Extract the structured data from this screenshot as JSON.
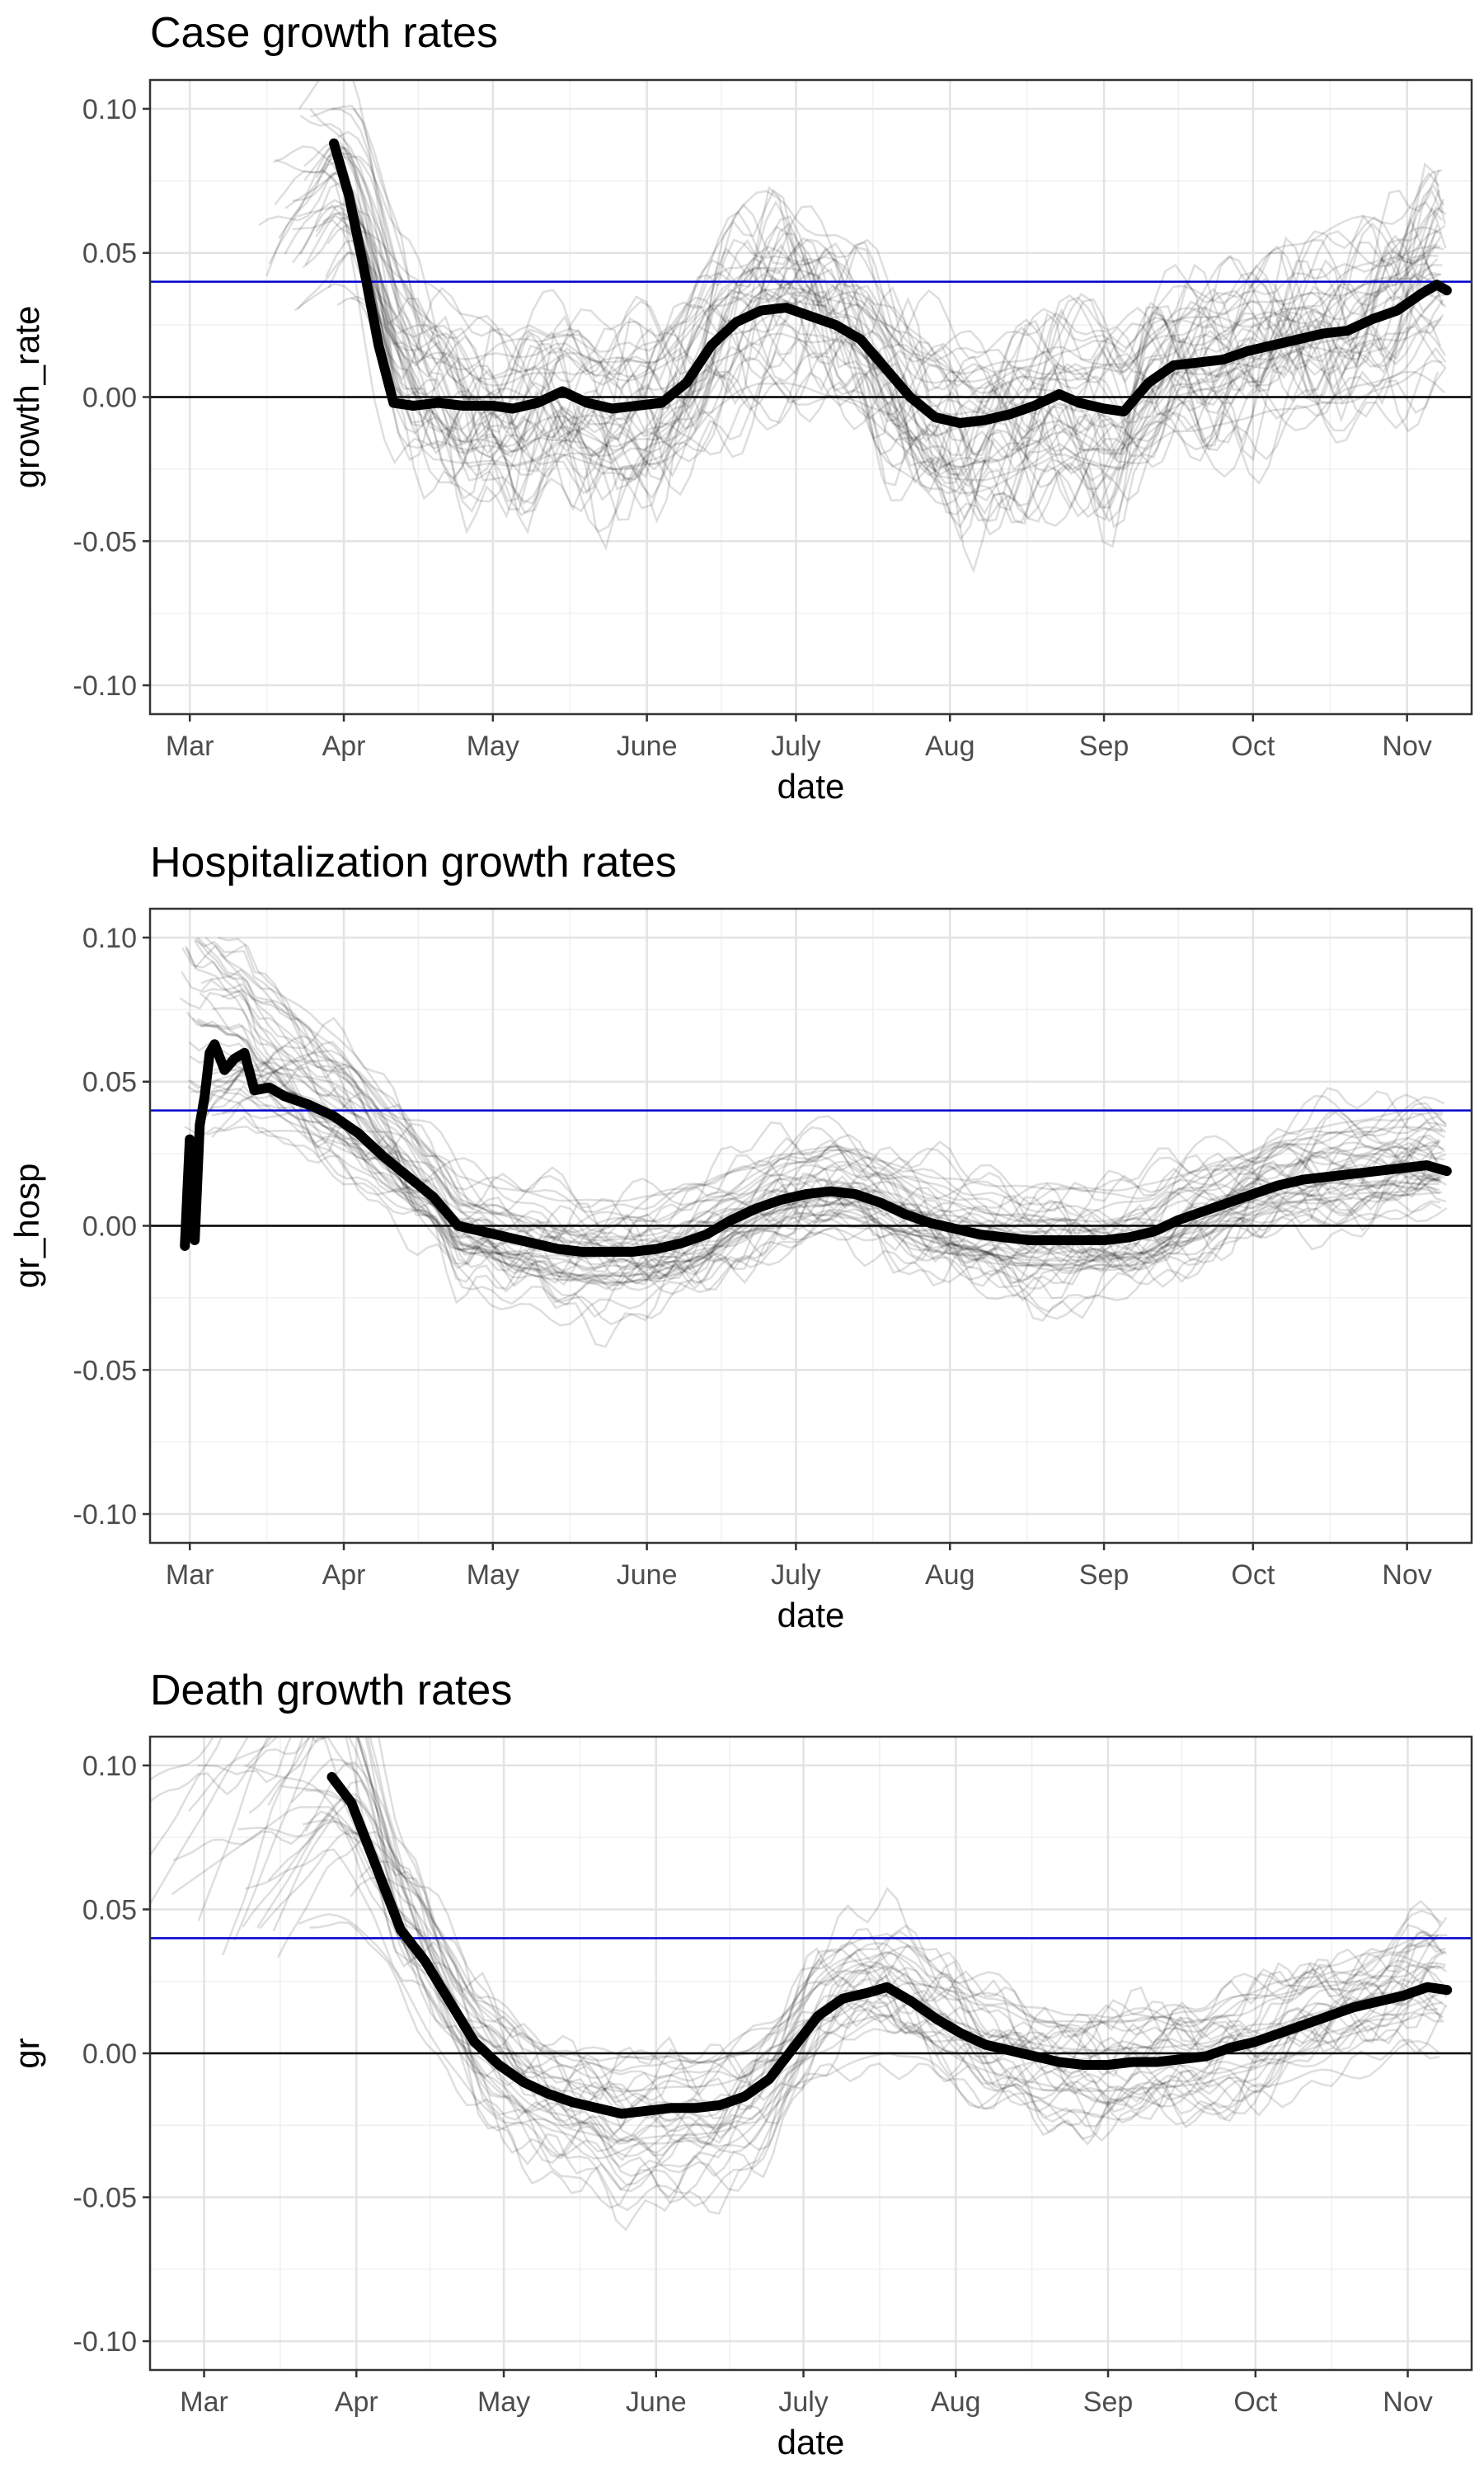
{
  "chart_data": [
    {
      "type": "line",
      "title": "Case growth rates",
      "xlabel": "date",
      "ylabel": "growth_rate",
      "x_range": [
        "2020-02-22",
        "2020-11-14"
      ],
      "ylim": [
        -0.11,
        0.11
      ],
      "yticks": [
        0.1,
        0.05,
        0.0,
        -0.05,
        -0.1
      ],
      "ytick_labels": [
        "0.10",
        "0.05",
        "0.00",
        "-0.05",
        "-0.10"
      ],
      "xticks": [
        "2020-03-01",
        "2020-04-01",
        "2020-05-01",
        "2020-06-01",
        "2020-07-01",
        "2020-08-01",
        "2020-09-01",
        "2020-10-01",
        "2020-11-01"
      ],
      "xtick_labels": [
        "Mar",
        "Apr",
        "May",
        "June",
        "July",
        "Aug",
        "Sep",
        "Oct",
        "Nov"
      ],
      "grid": true,
      "hlines": [
        {
          "y": 0.04,
          "color": "#0000cc"
        },
        {
          "y": 0.0,
          "color": "#000000"
        }
      ],
      "series": [
        {
          "color": "#000000",
          "points": [
            [
              "2020-03-30",
              0.088
            ],
            [
              "2020-04-02",
              0.07
            ],
            [
              "2020-04-05",
              0.045
            ],
            [
              "2020-04-08",
              0.018
            ],
            [
              "2020-04-11",
              -0.002
            ],
            [
              "2020-04-15",
              -0.003
            ],
            [
              "2020-04-20",
              -0.002
            ],
            [
              "2020-04-25",
              -0.003
            ],
            [
              "2020-05-01",
              -0.003
            ],
            [
              "2020-05-05",
              -0.004
            ],
            [
              "2020-05-10",
              -0.002
            ],
            [
              "2020-05-15",
              0.002
            ],
            [
              "2020-05-20",
              -0.002
            ],
            [
              "2020-05-25",
              -0.004
            ],
            [
              "2020-05-30",
              -0.003
            ],
            [
              "2020-06-04",
              -0.002
            ],
            [
              "2020-06-09",
              0.005
            ],
            [
              "2020-06-14",
              0.018
            ],
            [
              "2020-06-19",
              0.026
            ],
            [
              "2020-06-24",
              0.03
            ],
            [
              "2020-06-29",
              0.031
            ],
            [
              "2020-07-04",
              0.028
            ],
            [
              "2020-07-09",
              0.025
            ],
            [
              "2020-07-14",
              0.02
            ],
            [
              "2020-07-19",
              0.01
            ],
            [
              "2020-07-24",
              0.0
            ],
            [
              "2020-07-29",
              -0.007
            ],
            [
              "2020-08-03",
              -0.009
            ],
            [
              "2020-08-08",
              -0.008
            ],
            [
              "2020-08-13",
              -0.006
            ],
            [
              "2020-08-18",
              -0.003
            ],
            [
              "2020-08-23",
              0.001
            ],
            [
              "2020-08-27",
              -0.002
            ],
            [
              "2020-09-01",
              -0.004
            ],
            [
              "2020-09-05",
              -0.005
            ],
            [
              "2020-09-10",
              0.005
            ],
            [
              "2020-09-15",
              0.011
            ],
            [
              "2020-09-20",
              0.012
            ],
            [
              "2020-09-25",
              0.013
            ],
            [
              "2020-09-30",
              0.016
            ],
            [
              "2020-10-05",
              0.018
            ],
            [
              "2020-10-10",
              0.02
            ],
            [
              "2020-10-15",
              0.022
            ],
            [
              "2020-10-20",
              0.023
            ],
            [
              "2020-10-25",
              0.027
            ],
            [
              "2020-10-30",
              0.03
            ],
            [
              "2020-11-04",
              0.036
            ],
            [
              "2020-11-07",
              0.039
            ],
            [
              "2020-11-09",
              0.037
            ]
          ]
        }
      ]
    },
    {
      "type": "line",
      "title": "Hospitalization growth rates",
      "xlabel": "date",
      "ylabel": "gr_hosp",
      "x_range": [
        "2020-02-22",
        "2020-11-14"
      ],
      "ylim": [
        -0.11,
        0.11
      ],
      "yticks": [
        0.1,
        0.05,
        0.0,
        -0.05,
        -0.1
      ],
      "ytick_labels": [
        "0.10",
        "0.05",
        "0.00",
        "-0.05",
        "-0.10"
      ],
      "xticks": [
        "2020-03-01",
        "2020-04-01",
        "2020-05-01",
        "2020-06-01",
        "2020-07-01",
        "2020-08-01",
        "2020-09-01",
        "2020-10-01",
        "2020-11-01"
      ],
      "xtick_labels": [
        "Mar",
        "Apr",
        "May",
        "June",
        "July",
        "Aug",
        "Sep",
        "Oct",
        "Nov"
      ],
      "grid": true,
      "hlines": [
        {
          "y": 0.04,
          "color": "#0000cc"
        },
        {
          "y": 0.0,
          "color": "#000000"
        }
      ],
      "series": [
        {
          "color": "#000000",
          "points": [
            [
              "2020-02-29",
              -0.007
            ],
            [
              "2020-03-01",
              0.03
            ],
            [
              "2020-03-02",
              -0.005
            ],
            [
              "2020-03-03",
              0.035
            ],
            [
              "2020-03-04",
              0.045
            ],
            [
              "2020-03-05",
              0.06
            ],
            [
              "2020-03-06",
              0.063
            ],
            [
              "2020-03-08",
              0.054
            ],
            [
              "2020-03-10",
              0.058
            ],
            [
              "2020-03-12",
              0.06
            ],
            [
              "2020-03-14",
              0.047
            ],
            [
              "2020-03-17",
              0.048
            ],
            [
              "2020-03-20",
              0.045
            ],
            [
              "2020-03-25",
              0.042
            ],
            [
              "2020-03-30",
              0.038
            ],
            [
              "2020-04-04",
              0.032
            ],
            [
              "2020-04-09",
              0.024
            ],
            [
              "2020-04-14",
              0.017
            ],
            [
              "2020-04-19",
              0.01
            ],
            [
              "2020-04-24",
              0.0
            ],
            [
              "2020-04-29",
              -0.002
            ],
            [
              "2020-05-04",
              -0.004
            ],
            [
              "2020-05-09",
              -0.006
            ],
            [
              "2020-05-14",
              -0.008
            ],
            [
              "2020-05-19",
              -0.009
            ],
            [
              "2020-05-24",
              -0.009
            ],
            [
              "2020-05-29",
              -0.009
            ],
            [
              "2020-06-03",
              -0.008
            ],
            [
              "2020-06-08",
              -0.006
            ],
            [
              "2020-06-13",
              -0.003
            ],
            [
              "2020-06-18",
              0.002
            ],
            [
              "2020-06-23",
              0.006
            ],
            [
              "2020-06-28",
              0.009
            ],
            [
              "2020-07-03",
              0.011
            ],
            [
              "2020-07-08",
              0.012
            ],
            [
              "2020-07-13",
              0.011
            ],
            [
              "2020-07-18",
              0.008
            ],
            [
              "2020-07-23",
              0.004
            ],
            [
              "2020-07-28",
              0.001
            ],
            [
              "2020-08-02",
              -0.001
            ],
            [
              "2020-08-07",
              -0.003
            ],
            [
              "2020-08-12",
              -0.004
            ],
            [
              "2020-08-17",
              -0.005
            ],
            [
              "2020-08-22",
              -0.005
            ],
            [
              "2020-08-27",
              -0.005
            ],
            [
              "2020-09-01",
              -0.005
            ],
            [
              "2020-09-06",
              -0.004
            ],
            [
              "2020-09-11",
              -0.002
            ],
            [
              "2020-09-16",
              0.002
            ],
            [
              "2020-09-21",
              0.005
            ],
            [
              "2020-09-26",
              0.008
            ],
            [
              "2020-10-01",
              0.011
            ],
            [
              "2020-10-06",
              0.014
            ],
            [
              "2020-10-11",
              0.016
            ],
            [
              "2020-10-16",
              0.017
            ],
            [
              "2020-10-21",
              0.018
            ],
            [
              "2020-10-26",
              0.019
            ],
            [
              "2020-10-31",
              0.02
            ],
            [
              "2020-11-05",
              0.021
            ],
            [
              "2020-11-09",
              0.019
            ]
          ]
        }
      ]
    },
    {
      "type": "line",
      "title": "Death growth rates",
      "xlabel": "date",
      "ylabel": "gr",
      "x_range": [
        "2020-02-19",
        "2020-11-14"
      ],
      "ylim": [
        -0.11,
        0.11
      ],
      "yticks": [
        0.1,
        0.05,
        0.0,
        -0.05,
        -0.1
      ],
      "ytick_labels": [
        "0.10",
        "0.05",
        "0.00",
        "-0.05",
        "-0.10"
      ],
      "xticks": [
        "2020-03-01",
        "2020-04-01",
        "2020-05-01",
        "2020-06-01",
        "2020-07-01",
        "2020-08-01",
        "2020-09-01",
        "2020-10-01",
        "2020-11-01"
      ],
      "xtick_labels": [
        "Mar",
        "Apr",
        "May",
        "June",
        "July",
        "Aug",
        "Sep",
        "Oct",
        "Nov"
      ],
      "grid": true,
      "hlines": [
        {
          "y": 0.04,
          "color": "#0000cc"
        },
        {
          "y": 0.0,
          "color": "#000000"
        }
      ],
      "series": [
        {
          "color": "#000000",
          "points": [
            [
              "2020-03-27",
              0.096
            ],
            [
              "2020-03-31",
              0.087
            ],
            [
              "2020-04-05",
              0.065
            ],
            [
              "2020-04-10",
              0.043
            ],
            [
              "2020-04-15",
              0.032
            ],
            [
              "2020-04-20",
              0.018
            ],
            [
              "2020-04-25",
              0.004
            ],
            [
              "2020-04-30",
              -0.004
            ],
            [
              "2020-05-05",
              -0.01
            ],
            [
              "2020-05-10",
              -0.014
            ],
            [
              "2020-05-15",
              -0.017
            ],
            [
              "2020-05-20",
              -0.019
            ],
            [
              "2020-05-25",
              -0.021
            ],
            [
              "2020-05-30",
              -0.02
            ],
            [
              "2020-06-04",
              -0.019
            ],
            [
              "2020-06-09",
              -0.019
            ],
            [
              "2020-06-14",
              -0.018
            ],
            [
              "2020-06-19",
              -0.015
            ],
            [
              "2020-06-24",
              -0.009
            ],
            [
              "2020-06-29",
              0.002
            ],
            [
              "2020-07-04",
              0.013
            ],
            [
              "2020-07-09",
              0.019
            ],
            [
              "2020-07-14",
              0.021
            ],
            [
              "2020-07-18",
              0.023
            ],
            [
              "2020-07-23",
              0.018
            ],
            [
              "2020-07-28",
              0.012
            ],
            [
              "2020-08-02",
              0.007
            ],
            [
              "2020-08-07",
              0.003
            ],
            [
              "2020-08-12",
              0.001
            ],
            [
              "2020-08-17",
              -0.001
            ],
            [
              "2020-08-22",
              -0.003
            ],
            [
              "2020-08-27",
              -0.004
            ],
            [
              "2020-09-01",
              -0.004
            ],
            [
              "2020-09-06",
              -0.003
            ],
            [
              "2020-09-11",
              -0.003
            ],
            [
              "2020-09-16",
              -0.002
            ],
            [
              "2020-09-21",
              -0.001
            ],
            [
              "2020-09-26",
              0.002
            ],
            [
              "2020-10-01",
              0.004
            ],
            [
              "2020-10-06",
              0.007
            ],
            [
              "2020-10-11",
              0.01
            ],
            [
              "2020-10-16",
              0.013
            ],
            [
              "2020-10-21",
              0.016
            ],
            [
              "2020-10-26",
              0.018
            ],
            [
              "2020-10-31",
              0.02
            ],
            [
              "2020-11-05",
              0.023
            ],
            [
              "2020-11-09",
              0.022
            ]
          ]
        }
      ]
    }
  ]
}
